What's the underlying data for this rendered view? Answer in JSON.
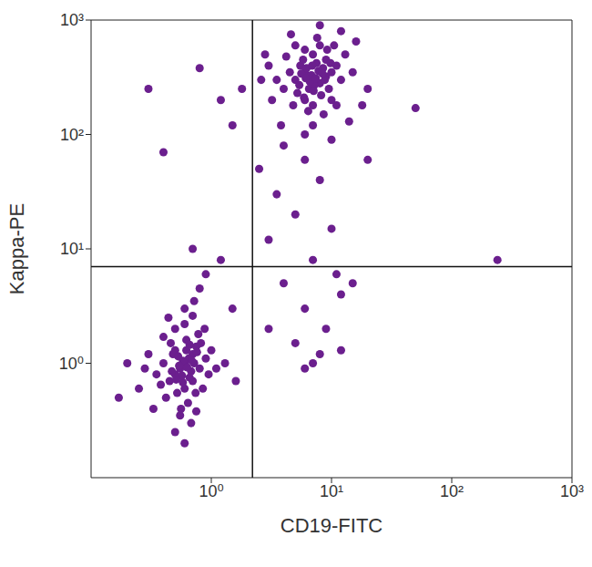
{
  "chart_data": {
    "type": "scatter",
    "x_label": "CD19-FITC",
    "y_label": "Kappa-PE",
    "log": true,
    "grid": false,
    "color": "#6b1f8e",
    "marker": "dot",
    "xlim": [
      0.1,
      1000
    ],
    "ylim": [
      0.1,
      1000
    ],
    "xticks": [
      {
        "value": 1,
        "label": "10⁰"
      },
      {
        "value": 10,
        "label": "10¹"
      },
      {
        "value": 100,
        "label": "10²"
      },
      {
        "value": 1000,
        "label": "10³"
      }
    ],
    "yticks": [
      {
        "value": 1,
        "label": "10⁰"
      },
      {
        "value": 10,
        "label": "10¹"
      },
      {
        "value": 100,
        "label": "10²"
      },
      {
        "value": 1000,
        "label": "10³"
      }
    ],
    "gate_x": 2.2,
    "gate_y": 7,
    "x": [
      0.6,
      0.5,
      0.7,
      0.55,
      0.65,
      0.45,
      0.75,
      0.6,
      0.5,
      0.8,
      0.4,
      0.7,
      0.62,
      0.52,
      0.68,
      0.58,
      0.48,
      0.72,
      0.66,
      0.54,
      0.35,
      0.9,
      0.85,
      0.3,
      0.42,
      0.78,
      0.6,
      0.5,
      0.7,
      0.64,
      0.56,
      0.46,
      0.74,
      0.82,
      0.38,
      0.95,
      0.6,
      0.55,
      0.68,
      0.5,
      0.72,
      0.44,
      1.0,
      1.1,
      0.28,
      0.25,
      0.62,
      0.58,
      0.66,
      0.53,
      0.47,
      0.76,
      0.57,
      0.63,
      0.69,
      0.51,
      0.88,
      0.4,
      0.2,
      0.17,
      1.3,
      0.6,
      0.8,
      0.9,
      1.2,
      0.7,
      1.5,
      1.6,
      0.33,
      0.75,
      7,
      6,
      8,
      5.5,
      9,
      6.5,
      7.5,
      5,
      8.5,
      10,
      6,
      7,
      4.5,
      9.5,
      6.8,
      7.2,
      5.8,
      8.2,
      11,
      4,
      6.2,
      7.8,
      5.2,
      9,
      6.6,
      7.4,
      8.8,
      5.6,
      12,
      3.5,
      6,
      7,
      8,
      10,
      4.8,
      9.2,
      6.4,
      13,
      3,
      5,
      7.6,
      15,
      11,
      4.2,
      8.6,
      6.9,
      5.4,
      7.1,
      8.4,
      6.1,
      9.8,
      5.9,
      10.5,
      3.2,
      16,
      7,
      6,
      12,
      4.6,
      8,
      20,
      2.6,
      3.8,
      18,
      2.8,
      14,
      6,
      8,
      5,
      10,
      7,
      4,
      6,
      9,
      3,
      12,
      5,
      8,
      15,
      3,
      2.5,
      4,
      10,
      20,
      7,
      11,
      3.5,
      1.5,
      1.2,
      0.8,
      1.8,
      0.4,
      0.3,
      50,
      240,
      12,
      6
    ],
    "values": [
      1.0,
      0.8,
      1.2,
      0.9,
      1.1,
      0.7,
      1.4,
      0.6,
      1.3,
      0.9,
      1.0,
      0.7,
      1.6,
      0.55,
      0.85,
      1.05,
      1.2,
      1.0,
      0.75,
      0.95,
      0.8,
      1.1,
      0.6,
      1.2,
      0.5,
      1.8,
      2.2,
      2.0,
      2.6,
      0.45,
      0.4,
      1.5,
      0.55,
      1.5,
      0.65,
      0.8,
      3.0,
      0.35,
      0.3,
      0.25,
      3.5,
      2.5,
      1.3,
      0.9,
      0.9,
      0.6,
      1.3,
      0.68,
      1.45,
      1.15,
      0.85,
      1.25,
      0.78,
      0.92,
      1.05,
      0.72,
      2.0,
      1.7,
      1.0,
      0.5,
      1.0,
      0.2,
      4.5,
      6.0,
      8.0,
      10,
      3.0,
      0.7,
      0.4,
      0.38,
      300,
      350,
      280,
      400,
      320,
      250,
      420,
      300,
      380,
      350,
      200,
      500,
      350,
      250,
      330,
      270,
      450,
      220,
      400,
      250,
      380,
      360,
      230,
      450,
      290,
      310,
      300,
      340,
      300,
      300,
      550,
      180,
      600,
      200,
      180,
      550,
      160,
      500,
      400,
      600,
      700,
      350,
      180,
      480,
      150,
      400,
      270,
      240,
      340,
      310,
      420,
      210,
      600,
      200,
      650,
      120,
      100,
      800,
      750,
      900,
      250,
      300,
      120,
      180,
      500,
      130,
      60,
      40,
      20,
      15,
      8,
      5,
      3,
      2,
      2,
      4,
      1.5,
      1.2,
      5,
      12,
      50,
      80,
      90,
      60,
      1.0,
      6,
      30,
      120,
      200,
      380,
      250,
      70,
      250,
      170,
      8,
      1.3,
      0.9
    ]
  }
}
